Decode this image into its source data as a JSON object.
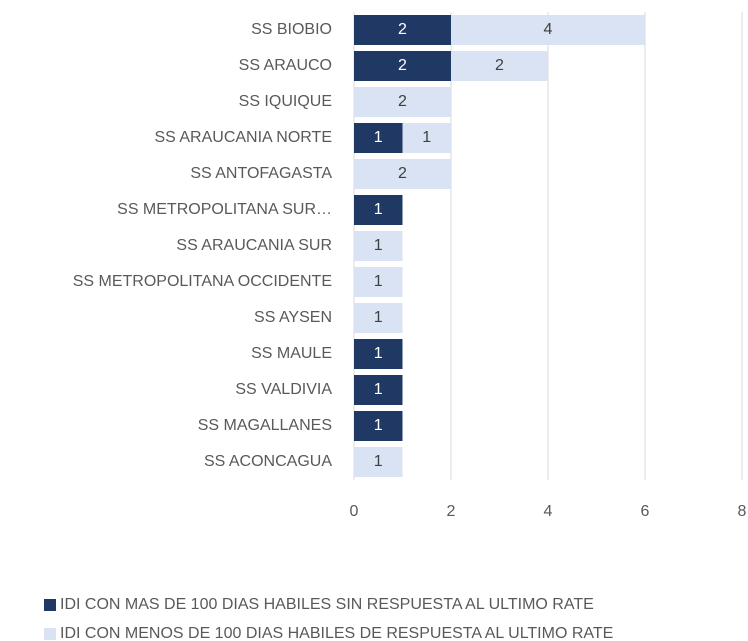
{
  "chart_data": {
    "type": "bar",
    "orientation": "horizontal",
    "stacked": true,
    "categories": [
      "SS BIOBIO",
      "SS ARAUCO",
      "SS IQUIQUE",
      "SS ARAUCANIA NORTE",
      "SS ANTOFAGASTA",
      "SS METROPOLITANA SUR…",
      "SS ARAUCANIA SUR",
      "SS METROPOLITANA OCCIDENTE",
      "SS AYSEN",
      "SS MAULE",
      "SS VALDIVIA",
      "SS MAGALLANES",
      "SS ACONCAGUA"
    ],
    "series": [
      {
        "name": "IDI CON MAS DE 100 DIAS HABILES SIN RESPUESTA AL ULTIMO RATE",
        "color": "#1f3864",
        "label_color": "#ffffff",
        "values": [
          2,
          2,
          null,
          1,
          null,
          1,
          null,
          null,
          null,
          1,
          1,
          1,
          null
        ]
      },
      {
        "name": "IDI CON MENOS DE 100 DIAS HABILES DE RESPUESTA AL ULTIMO RATE",
        "color": "#dae3f3",
        "label_color": "#404040",
        "values": [
          4,
          2,
          2,
          1,
          2,
          null,
          1,
          1,
          1,
          null,
          null,
          null,
          1
        ]
      }
    ],
    "xlim": [
      0,
      8
    ],
    "xticks": [
      0,
      2,
      4,
      6,
      8
    ],
    "grid": true
  }
}
